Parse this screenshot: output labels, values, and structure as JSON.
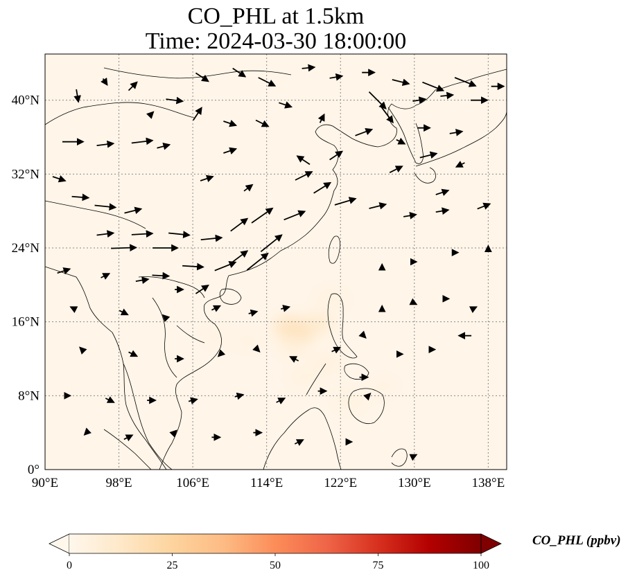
{
  "title": {
    "line1": "CO_PHL at 1.5km",
    "line2": "Time: 2024-03-30 18:00:00"
  },
  "map": {
    "lon_range": [
      90,
      140
    ],
    "lat_range": [
      0,
      45
    ],
    "lon_ticks": [
      90,
      98,
      106,
      114,
      122,
      130,
      138
    ],
    "lat_ticks": [
      0,
      8,
      16,
      24,
      32,
      40
    ],
    "lon_tick_labels": [
      "90°E",
      "98°E",
      "106°E",
      "114°E",
      "122°E",
      "130°E",
      "138°E"
    ],
    "lat_tick_labels": [
      "0°",
      "8°N",
      "16°N",
      "24°N",
      "32°N",
      "40°N"
    ],
    "gridlines": true,
    "background_color": "#fff5e8",
    "coastline_color": "#000000"
  },
  "colorbar": {
    "label": "CO_PHL (ppbv)",
    "min": 0,
    "max": 100,
    "ticks": [
      0,
      25,
      50,
      75,
      100
    ],
    "tick_labels": [
      "0",
      "25",
      "50",
      "75",
      "100"
    ],
    "extend": "both",
    "colormap": "OrRd",
    "colors": [
      "#fff7ec",
      "#fee8c8",
      "#fdd49e",
      "#fdbb84",
      "#fc8d59",
      "#ef6548",
      "#d7301f",
      "#b30000",
      "#7f0000"
    ]
  },
  "concentration_hotspots": [
    {
      "lon": 117.8,
      "lat": 15.2,
      "value": 22
    },
    {
      "lon": 116.5,
      "lat": 15.4,
      "value": 16
    },
    {
      "lon": 119.5,
      "lat": 15.8,
      "value": 10
    },
    {
      "lon": 117.0,
      "lat": 13.5,
      "value": 7
    },
    {
      "lon": 120.5,
      "lat": 11.5,
      "value": 5
    },
    {
      "lon": 118.0,
      "lat": 10.0,
      "value": 4
    },
    {
      "lon": 123.0,
      "lat": 7.5,
      "value": 4
    },
    {
      "lon": 121.0,
      "lat": 18.5,
      "value": 4
    },
    {
      "lon": 112.0,
      "lat": 14.0,
      "value": 3
    },
    {
      "lon": 108.5,
      "lat": 14.5,
      "value": 3
    },
    {
      "lon": 126.5,
      "lat": 9.0,
      "value": 3
    }
  ],
  "wind_vectors": [
    {
      "lon": 93.0,
      "lat": 35.5,
      "u": 5,
      "v": 0
    },
    {
      "lon": 96.5,
      "lat": 35.2,
      "u": 4,
      "v": 0.5
    },
    {
      "lon": 100.5,
      "lat": 35.5,
      "u": 5,
      "v": 0.6
    },
    {
      "lon": 102.8,
      "lat": 35.0,
      "u": 3,
      "v": 0.8
    },
    {
      "lon": 91.5,
      "lat": 31.5,
      "u": 3,
      "v": -1
    },
    {
      "lon": 93.8,
      "lat": 29.5,
      "u": 4,
      "v": -0.3
    },
    {
      "lon": 96.5,
      "lat": 28.5,
      "u": 5,
      "v": -0.5
    },
    {
      "lon": 99.5,
      "lat": 28.0,
      "u": 4,
      "v": 1
    },
    {
      "lon": 96.5,
      "lat": 25.5,
      "u": 4,
      "v": 0.5
    },
    {
      "lon": 100.5,
      "lat": 25.5,
      "u": 5,
      "v": 0.3
    },
    {
      "lon": 104.5,
      "lat": 25.5,
      "u": 5,
      "v": -0.5
    },
    {
      "lon": 108.0,
      "lat": 25.0,
      "u": 5,
      "v": 0.5
    },
    {
      "lon": 98.5,
      "lat": 24.0,
      "u": 6,
      "v": 0.2
    },
    {
      "lon": 103.0,
      "lat": 24.0,
      "u": 6,
      "v": 0
    },
    {
      "lon": 106.0,
      "lat": 22.0,
      "u": 5,
      "v": -0.3
    },
    {
      "lon": 102.5,
      "lat": 21.0,
      "u": 4,
      "v": -0.2
    },
    {
      "lon": 109.5,
      "lat": 22.0,
      "u": 5,
      "v": 2
    },
    {
      "lon": 111.0,
      "lat": 23.0,
      "u": 4,
      "v": 3
    },
    {
      "lon": 113.0,
      "lat": 22.5,
      "u": 5,
      "v": 4
    },
    {
      "lon": 114.5,
      "lat": 24.5,
      "u": 5,
      "v": 4
    },
    {
      "lon": 111.0,
      "lat": 26.5,
      "u": 4,
      "v": 3
    },
    {
      "lon": 113.5,
      "lat": 27.5,
      "u": 5,
      "v": 3.5
    },
    {
      "lon": 117.0,
      "lat": 27.5,
      "u": 5,
      "v": 2
    },
    {
      "lon": 120.0,
      "lat": 30.5,
      "u": 4,
      "v": 2.5
    },
    {
      "lon": 118.0,
      "lat": 31.8,
      "u": 4,
      "v": 2
    },
    {
      "lon": 122.5,
      "lat": 29.0,
      "u": 5,
      "v": 1.5
    },
    {
      "lon": 126.0,
      "lat": 28.5,
      "u": 4,
      "v": 1
    },
    {
      "lon": 129.5,
      "lat": 27.5,
      "u": 3,
      "v": 0.5
    },
    {
      "lon": 133.0,
      "lat": 28.0,
      "u": 3,
      "v": 0.5
    },
    {
      "lon": 137.5,
      "lat": 28.5,
      "u": 3,
      "v": 1.2
    },
    {
      "lon": 118.0,
      "lat": 33.5,
      "u": -3,
      "v": 2
    },
    {
      "lon": 121.5,
      "lat": 34.0,
      "u": 3,
      "v": 2
    },
    {
      "lon": 124.5,
      "lat": 36.5,
      "u": 4,
      "v": 1.5
    },
    {
      "lon": 127.0,
      "lat": 38.5,
      "u": 3,
      "v": -4
    },
    {
      "lon": 126.0,
      "lat": 40.0,
      "u": 4,
      "v": -4
    },
    {
      "lon": 130.5,
      "lat": 40.0,
      "u": 3,
      "v": 0.5
    },
    {
      "lon": 133.5,
      "lat": 40.5,
      "u": 3,
      "v": 0.3
    },
    {
      "lon": 137.0,
      "lat": 40.0,
      "u": 4,
      "v": 0
    },
    {
      "lon": 131.0,
      "lat": 37.0,
      "u": 3,
      "v": 0
    },
    {
      "lon": 134.5,
      "lat": 36.5,
      "u": 3,
      "v": 0.5
    },
    {
      "lon": 128.5,
      "lat": 35.5,
      "u": 2,
      "v": -1
    },
    {
      "lon": 131.5,
      "lat": 34.0,
      "u": 4,
      "v": 1
    },
    {
      "lon": 135.0,
      "lat": 33.0,
      "u": -2,
      "v": -1
    },
    {
      "lon": 128.0,
      "lat": 32.5,
      "u": 3,
      "v": 1.5
    },
    {
      "lon": 133.0,
      "lat": 30.0,
      "u": 3,
      "v": 1
    },
    {
      "lon": 104.0,
      "lat": 40.0,
      "u": 4,
      "v": -0.5
    },
    {
      "lon": 107.0,
      "lat": 42.5,
      "u": 3,
      "v": -2
    },
    {
      "lon": 111.0,
      "lat": 43.0,
      "u": 3,
      "v": -2
    },
    {
      "lon": 114.0,
      "lat": 42.0,
      "u": 4,
      "v": -2
    },
    {
      "lon": 118.5,
      "lat": 43.5,
      "u": 3,
      "v": 0.3
    },
    {
      "lon": 121.5,
      "lat": 42.5,
      "u": 3,
      "v": 0.5
    },
    {
      "lon": 125.0,
      "lat": 43.0,
      "u": 3,
      "v": 0
    },
    {
      "lon": 128.5,
      "lat": 42.0,
      "u": 4,
      "v": -1
    },
    {
      "lon": 132.0,
      "lat": 41.5,
      "u": 5,
      "v": -2
    },
    {
      "lon": 135.5,
      "lat": 42.0,
      "u": 5,
      "v": -2
    },
    {
      "lon": 139.0,
      "lat": 41.5,
      "u": 3,
      "v": 0
    },
    {
      "lon": 96.5,
      "lat": 42.0,
      "u": 1,
      "v": -1.5
    },
    {
      "lon": 99.5,
      "lat": 41.5,
      "u": 2,
      "v": 2
    },
    {
      "lon": 93.5,
      "lat": 40.5,
      "u": 0.5,
      "v": -3
    },
    {
      "lon": 101.5,
      "lat": 38.5,
      "u": 1,
      "v": 1
    },
    {
      "lon": 106.5,
      "lat": 38.5,
      "u": 2,
      "v": 3
    },
    {
      "lon": 110.0,
      "lat": 37.5,
      "u": 3,
      "v": -1
    },
    {
      "lon": 113.5,
      "lat": 37.5,
      "u": 3,
      "v": -1.5
    },
    {
      "lon": 116.0,
      "lat": 39.5,
      "u": 3,
      "v": -1
    },
    {
      "lon": 120.0,
      "lat": 38.0,
      "u": 1,
      "v": 2
    },
    {
      "lon": 110.0,
      "lat": 34.5,
      "u": 3,
      "v": 1
    },
    {
      "lon": 107.5,
      "lat": 31.5,
      "u": 3,
      "v": 1
    },
    {
      "lon": 112.0,
      "lat": 30.5,
      "u": 2,
      "v": 1.5
    },
    {
      "lon": 92.0,
      "lat": 21.5,
      "u": 3,
      "v": 1
    },
    {
      "lon": 96.5,
      "lat": 21.0,
      "u": 2,
      "v": 1
    },
    {
      "lon": 100.5,
      "lat": 20.5,
      "u": 3,
      "v": 0.5
    },
    {
      "lon": 104.5,
      "lat": 19.5,
      "u": 2,
      "v": 0
    },
    {
      "lon": 107.0,
      "lat": 19.5,
      "u": 3,
      "v": 2
    },
    {
      "lon": 93.0,
      "lat": 17.5,
      "u": -1,
      "v": 0.5
    },
    {
      "lon": 98.5,
      "lat": 17.0,
      "u": 2,
      "v": -1
    },
    {
      "lon": 103.0,
      "lat": 16.5,
      "u": -1,
      "v": 1
    },
    {
      "lon": 108.5,
      "lat": 17.5,
      "u": 2,
      "v": 1
    },
    {
      "lon": 112.5,
      "lat": 17.0,
      "u": 2,
      "v": 0.5
    },
    {
      "lon": 116.0,
      "lat": 17.5,
      "u": 2,
      "v": 0.5
    },
    {
      "lon": 94.0,
      "lat": 13.0,
      "u": -1,
      "v": 1
    },
    {
      "lon": 99.5,
      "lat": 12.5,
      "u": 2,
      "v": -1
    },
    {
      "lon": 104.5,
      "lat": 12.0,
      "u": 2,
      "v": 0
    },
    {
      "lon": 109.0,
      "lat": 12.5,
      "u": -1,
      "v": -1
    },
    {
      "lon": 113.0,
      "lat": 13.0,
      "u": 1,
      "v": -1
    },
    {
      "lon": 117.0,
      "lat": 12.0,
      "u": -2,
      "v": 1
    },
    {
      "lon": 121.5,
      "lat": 13.0,
      "u": 2,
      "v": 1
    },
    {
      "lon": 92.5,
      "lat": 8.0,
      "u": 1,
      "v": 0
    },
    {
      "lon": 97.0,
      "lat": 7.5,
      "u": 2,
      "v": -1
    },
    {
      "lon": 101.5,
      "lat": 7.5,
      "u": 2,
      "v": 0
    },
    {
      "lon": 106.0,
      "lat": 7.5,
      "u": 2,
      "v": 0.5
    },
    {
      "lon": 111.0,
      "lat": 8.0,
      "u": 2,
      "v": 0.5
    },
    {
      "lon": 115.5,
      "lat": 7.5,
      "u": 2,
      "v": 1
    },
    {
      "lon": 120.0,
      "lat": 8.5,
      "u": 2,
      "v": 0
    },
    {
      "lon": 125.0,
      "lat": 8.0,
      "u": 1,
      "v": 1
    },
    {
      "lon": 94.5,
      "lat": 4.0,
      "u": -1,
      "v": -1
    },
    {
      "lon": 99.0,
      "lat": 3.5,
      "u": 2,
      "v": 1
    },
    {
      "lon": 104.0,
      "lat": 4.0,
      "u": 1,
      "v": 1
    },
    {
      "lon": 108.5,
      "lat": 3.5,
      "u": 2,
      "v": 0
    },
    {
      "lon": 113.0,
      "lat": 4.0,
      "u": 2,
      "v": 0
    },
    {
      "lon": 117.5,
      "lat": 3.0,
      "u": 2,
      "v": 1
    },
    {
      "lon": 123.0,
      "lat": 3.0,
      "u": 1,
      "v": 0
    },
    {
      "lon": 130.0,
      "lat": 1.5,
      "u": 1,
      "v": 0.5
    },
    {
      "lon": 126.5,
      "lat": 17.5,
      "u": 0,
      "v": 1
    },
    {
      "lon": 130.0,
      "lat": 18.0,
      "u": 1,
      "v": -0.5
    },
    {
      "lon": 133.5,
      "lat": 18.5,
      "u": 1,
      "v": 0
    },
    {
      "lon": 136.5,
      "lat": 17.5,
      "u": 1,
      "v": 0.5
    },
    {
      "lon": 126.5,
      "lat": 22.0,
      "u": 0,
      "v": 1
    },
    {
      "lon": 130.0,
      "lat": 22.5,
      "u": 1,
      "v": 0
    },
    {
      "lon": 134.5,
      "lat": 23.5,
      "u": 1,
      "v": 0
    },
    {
      "lon": 138.0,
      "lat": 24.0,
      "u": 0,
      "v": 1
    },
    {
      "lon": 135.5,
      "lat": 14.5,
      "u": -3,
      "v": 0
    },
    {
      "lon": 132.0,
      "lat": 13.0,
      "u": 1,
      "v": 0
    },
    {
      "lon": 128.5,
      "lat": 12.5,
      "u": 1,
      "v": 0
    },
    {
      "lon": 124.5,
      "lat": 14.5,
      "u": 1,
      "v": -1
    },
    {
      "lon": 124.5,
      "lat": 10.0,
      "u": 2,
      "v": 0
    }
  ]
}
